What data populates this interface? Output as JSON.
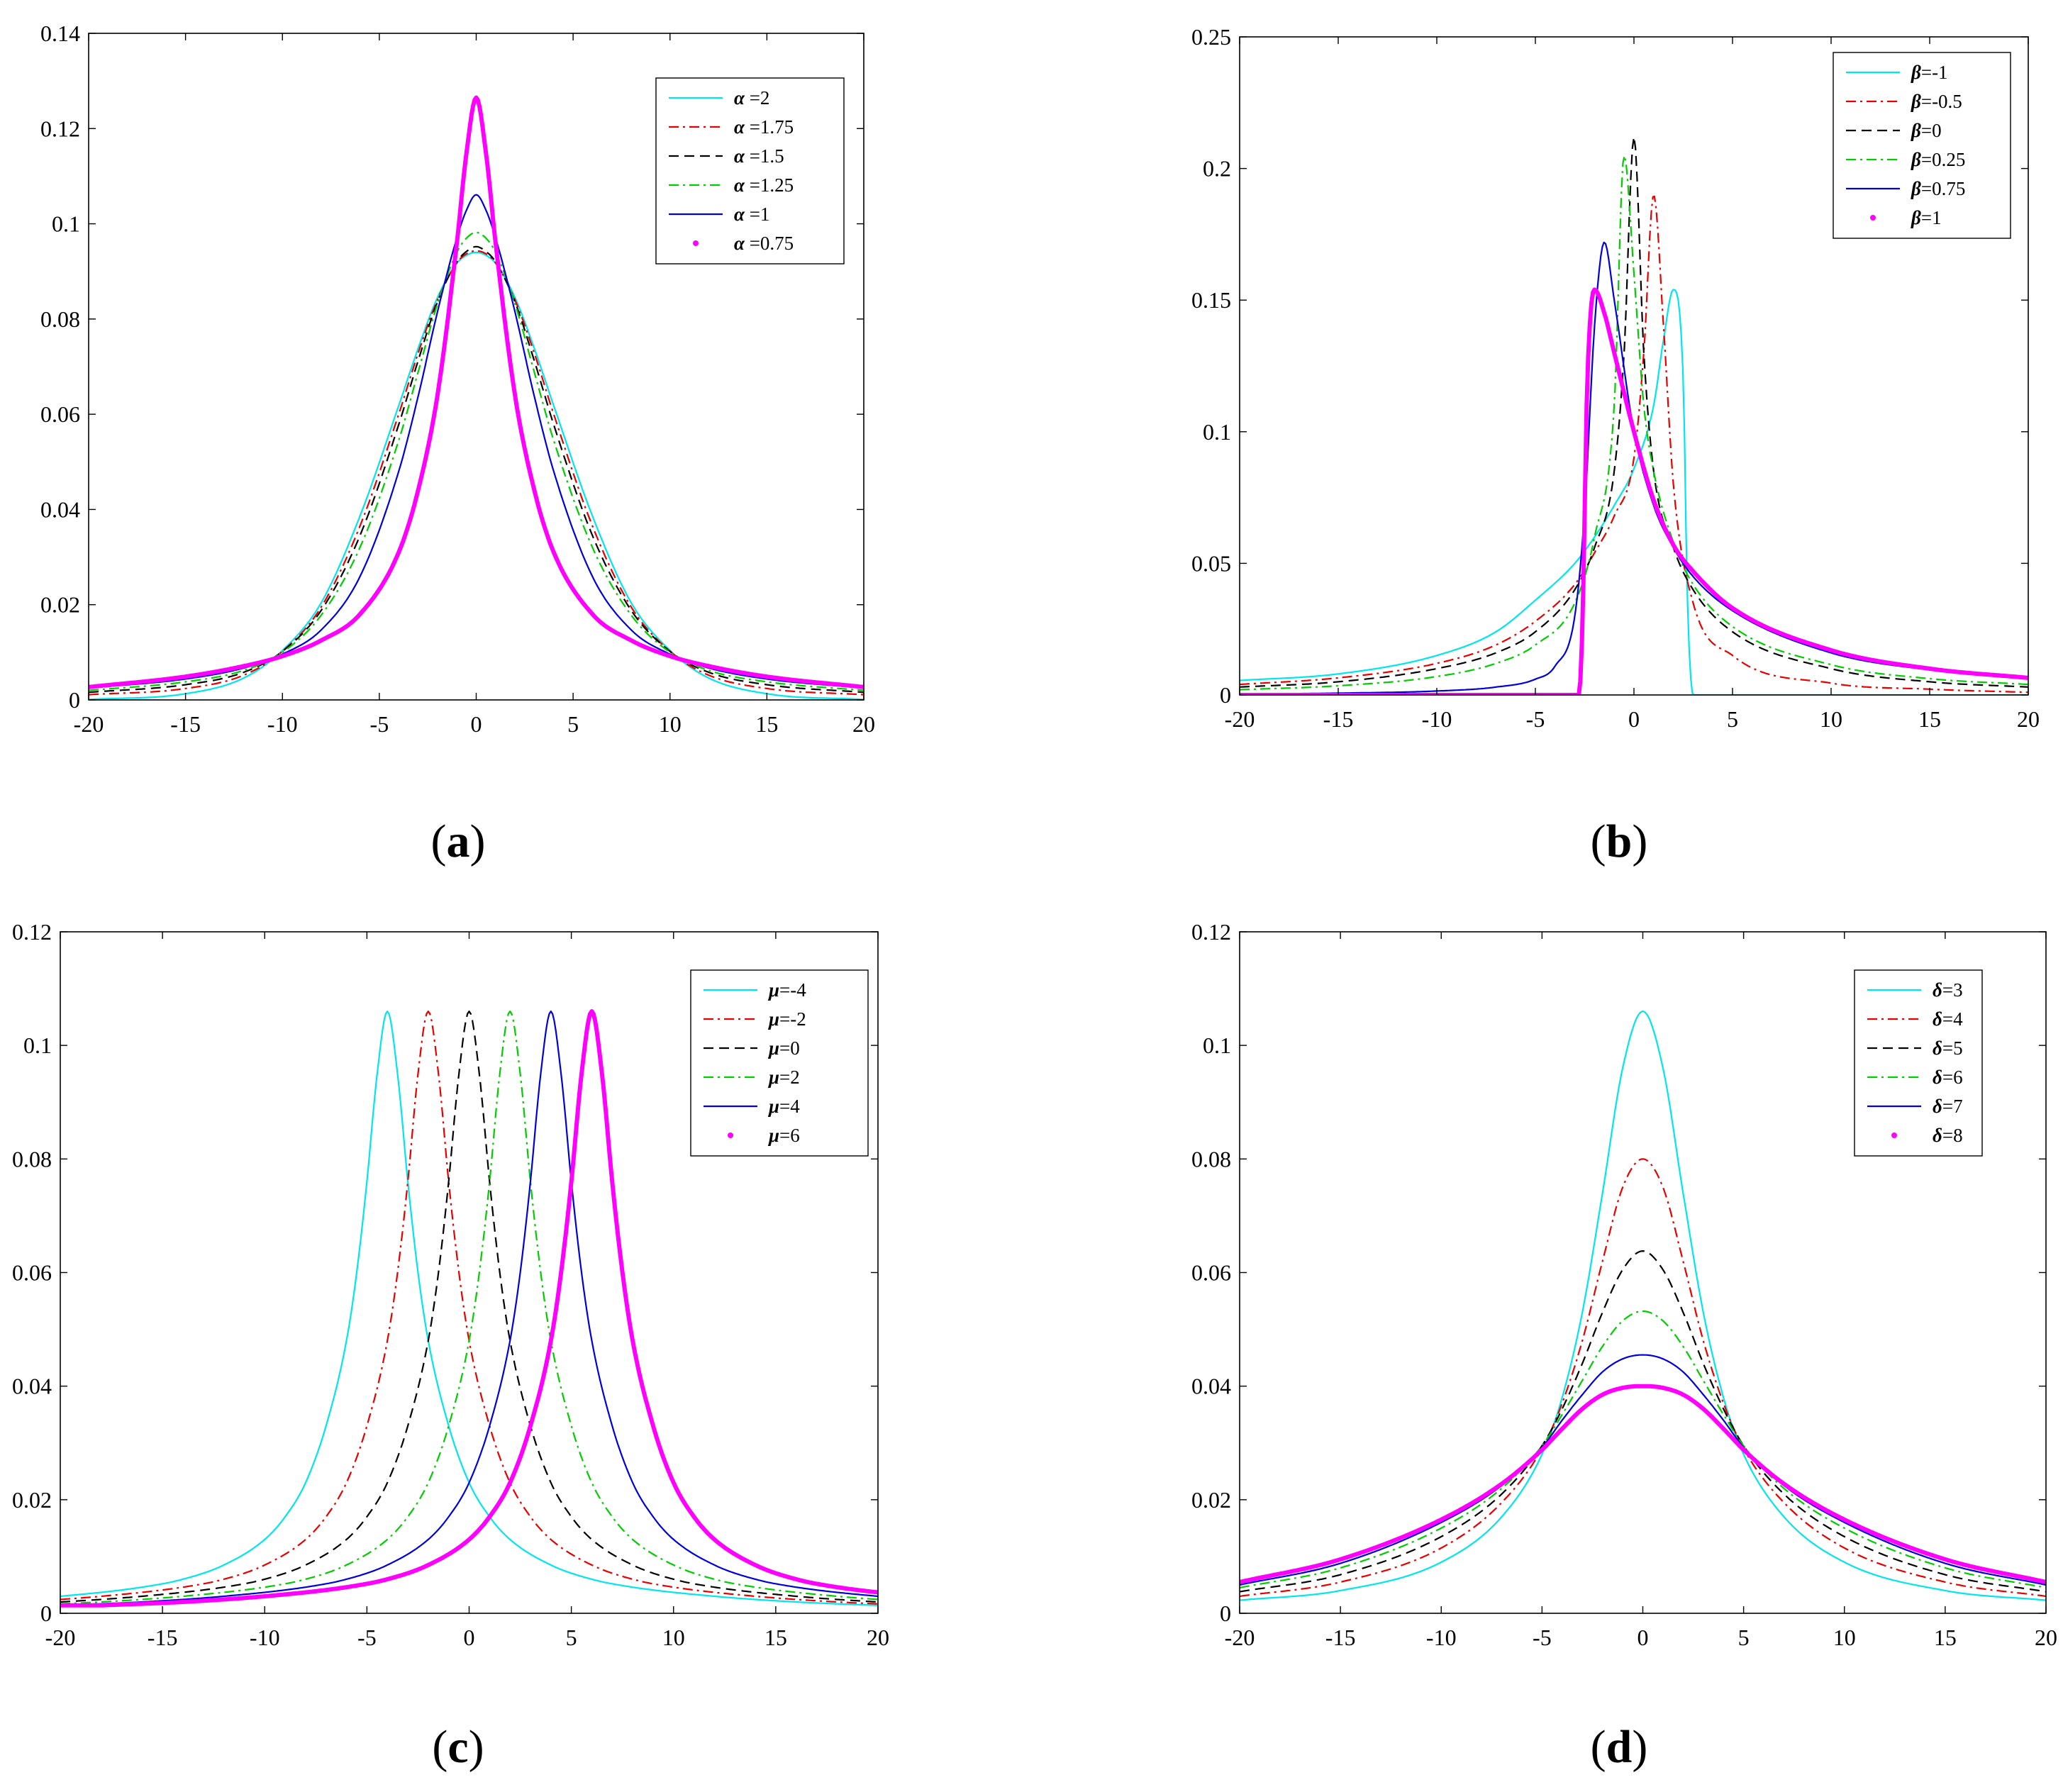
{
  "figure": {
    "styles": {
      "cyan": {
        "color": "#00e5ee",
        "dash": "",
        "width": 2.2,
        "dot": false
      },
      "red": {
        "color": "#e60000",
        "dash": "14 6 3 6",
        "width": 2.2,
        "dot": false
      },
      "black": {
        "color": "#000000",
        "dash": "14 8",
        "width": 2.2,
        "dot": false
      },
      "green": {
        "color": "#00cc00",
        "dash": "14 6 3 6",
        "width": 2.2,
        "dot": false
      },
      "blue": {
        "color": "#0000dd",
        "dash": "",
        "width": 2.2,
        "dot": false
      },
      "magenta": {
        "color": "#ff00ff",
        "dash": "",
        "width": 6,
        "dot": true
      }
    }
  },
  "chart_data": [
    {
      "type": "line",
      "caption": "a",
      "title": "",
      "xlabel": "",
      "ylabel": "",
      "xlim": [
        -20,
        20
      ],
      "ylim": [
        0,
        0.14
      ],
      "xticks": [
        -20,
        -15,
        -10,
        -5,
        0,
        5,
        10,
        15,
        20
      ],
      "xtick_labels": [
        "-20",
        "-15",
        "-10",
        "-5",
        "0",
        "5",
        "10",
        "15",
        "20"
      ],
      "yticks": [
        0,
        0.02,
        0.04,
        0.06,
        0.08,
        0.1,
        0.12,
        0.14
      ],
      "ytick_labels": [
        "0",
        "0.02",
        "0.04",
        "0.06",
        "0.08",
        "0.1",
        "0.12",
        "0.14"
      ],
      "legend": {
        "placement": "top-right",
        "symbol": "α",
        "separator": " =",
        "labels": [
          "2",
          "1.75",
          "1.5",
          "1.25",
          "1",
          "0.75"
        ]
      },
      "x": [
        -20,
        -15,
        -12,
        -10,
        -8,
        -6,
        -4,
        -3,
        -2,
        -1,
        -0.5,
        0,
        0.5,
        1,
        2,
        3,
        4,
        6,
        8,
        10,
        12,
        15,
        20
      ],
      "series": [
        {
          "name": "α =2",
          "style": "cyan",
          "values": [
            0.0001,
            0.0013,
            0.0046,
            0.0104,
            0.0204,
            0.0386,
            0.0618,
            0.0738,
            0.0845,
            0.0917,
            0.0934,
            0.094,
            0.0934,
            0.0917,
            0.0845,
            0.0738,
            0.0618,
            0.0386,
            0.0204,
            0.0104,
            0.0046,
            0.0013,
            0.0001
          ]
        },
        {
          "name": "α =1.75",
          "style": "red",
          "values": [
            0.0011,
            0.0024,
            0.0052,
            0.0102,
            0.0195,
            0.0365,
            0.06,
            0.0728,
            0.084,
            0.0918,
            0.0937,
            0.0943,
            0.0937,
            0.0918,
            0.084,
            0.0728,
            0.06,
            0.0365,
            0.0195,
            0.0102,
            0.0052,
            0.0024,
            0.0011
          ]
        },
        {
          "name": "α =1.5",
          "style": "black",
          "values": [
            0.0016,
            0.0032,
            0.0058,
            0.0102,
            0.0188,
            0.0345,
            0.0578,
            0.0712,
            0.0836,
            0.092,
            0.0942,
            0.0952,
            0.0942,
            0.092,
            0.0836,
            0.0712,
            0.0578,
            0.0345,
            0.0188,
            0.0102,
            0.0058,
            0.0032,
            0.0016
          ]
        },
        {
          "name": "α =1.25",
          "style": "green",
          "values": [
            0.002,
            0.0038,
            0.0062,
            0.01,
            0.0178,
            0.032,
            0.0545,
            0.0688,
            0.0832,
            0.094,
            0.097,
            0.0982,
            0.097,
            0.094,
            0.0832,
            0.0688,
            0.0545,
            0.032,
            0.0178,
            0.01,
            0.0062,
            0.0038,
            0.002
          ]
        },
        {
          "name": "α =1",
          "style": "blue",
          "values": [
            0.0025,
            0.0044,
            0.0067,
            0.0096,
            0.0147,
            0.0259,
            0.048,
            0.0637,
            0.0815,
            0.097,
            0.1029,
            0.1061,
            0.1029,
            0.097,
            0.0815,
            0.0637,
            0.048,
            0.0259,
            0.0147,
            0.0096,
            0.0067,
            0.0044,
            0.0025
          ]
        },
        {
          "name": "α =0.75",
          "style": "magenta",
          "values": [
            0.0027,
            0.0049,
            0.0071,
            0.0092,
            0.0125,
            0.018,
            0.031,
            0.044,
            0.064,
            0.096,
            0.115,
            0.1265,
            0.115,
            0.096,
            0.064,
            0.044,
            0.031,
            0.018,
            0.0125,
            0.0092,
            0.0071,
            0.0049,
            0.0027
          ]
        }
      ]
    },
    {
      "type": "line",
      "caption": "b",
      "title": "",
      "xlabel": "",
      "ylabel": "",
      "xlim": [
        -20,
        20
      ],
      "ylim": [
        0,
        0.25
      ],
      "xticks": [
        -20,
        -15,
        -10,
        -5,
        0,
        5,
        10,
        15,
        20
      ],
      "xtick_labels": [
        "-20",
        "-15",
        "-10",
        "-5",
        "0",
        "5",
        "10",
        "15",
        "20"
      ],
      "yticks": [
        0,
        0.05,
        0.1,
        0.15,
        0.2,
        0.25
      ],
      "ytick_labels": [
        "0",
        "0.05",
        "0.1",
        "0.15",
        "0.2",
        "0.25"
      ],
      "legend": {
        "placement": "top-right",
        "symbol": "β",
        "separator": "=",
        "labels": [
          "-1",
          "-0.5",
          "0",
          "0.25",
          "0.75",
          "1"
        ]
      },
      "series": [
        {
          "name": "β=-1",
          "style": "cyan",
          "x": [
            -20,
            -15,
            -10,
            -7,
            -5,
            -3,
            -2,
            -1,
            0,
            1,
            1.5,
            2,
            2.5,
            2.7,
            3,
            5,
            10,
            15,
            20
          ],
          "values": [
            0.0055,
            0.008,
            0.015,
            0.024,
            0.036,
            0.05,
            0.06,
            0.072,
            0.086,
            0.11,
            0.135,
            0.154,
            0.12,
            0.04,
            0.0,
            0.0,
            0.0,
            0.0,
            0.0
          ]
        },
        {
          "name": "β=-0.5",
          "style": "red",
          "x": [
            -20,
            -15,
            -10,
            -7,
            -5,
            -3,
            -2,
            -1,
            0,
            0.5,
            1,
            1.5,
            2,
            3,
            5,
            10,
            15,
            20
          ],
          "values": [
            0.004,
            0.0065,
            0.012,
            0.019,
            0.028,
            0.042,
            0.054,
            0.068,
            0.09,
            0.13,
            0.19,
            0.14,
            0.08,
            0.035,
            0.015,
            0.0045,
            0.0022,
            0.001
          ]
        },
        {
          "name": "β=0",
          "style": "black",
          "x": [
            -20,
            -15,
            -10,
            -7,
            -5,
            -3,
            -2,
            -1,
            -0.5,
            0,
            0.5,
            1,
            2,
            3,
            5,
            10,
            15,
            20
          ],
          "values": [
            0.003,
            0.005,
            0.01,
            0.016,
            0.024,
            0.04,
            0.056,
            0.085,
            0.13,
            0.212,
            0.13,
            0.085,
            0.056,
            0.04,
            0.024,
            0.01,
            0.005,
            0.003
          ]
        },
        {
          "name": "β=0.25",
          "style": "green",
          "x": [
            -20,
            -15,
            -10,
            -7,
            -5,
            -3,
            -2,
            -1,
            -0.5,
            0,
            0.5,
            1,
            2,
            3,
            5,
            10,
            15,
            20
          ],
          "values": [
            0.002,
            0.0035,
            0.007,
            0.012,
            0.019,
            0.035,
            0.06,
            0.11,
            0.205,
            0.16,
            0.11,
            0.085,
            0.058,
            0.042,
            0.026,
            0.0115,
            0.0062,
            0.004
          ]
        },
        {
          "name": "β=0.75",
          "style": "blue",
          "x": [
            -20,
            -15,
            -10,
            -7,
            -5,
            -4,
            -3,
            -2.5,
            -2,
            -1.5,
            -1,
            0,
            1,
            2,
            3,
            5,
            10,
            15,
            20
          ],
          "values": [
            0.0003,
            0.0007,
            0.0015,
            0.003,
            0.006,
            0.011,
            0.03,
            0.07,
            0.14,
            0.172,
            0.15,
            0.1,
            0.072,
            0.056,
            0.045,
            0.032,
            0.016,
            0.0095,
            0.006
          ]
        },
        {
          "name": "β=1",
          "style": "magenta",
          "x": [
            -20,
            -10,
            -5,
            -3,
            -2.8,
            -2.6,
            -2.4,
            -2.2,
            -2,
            -1.5,
            -1,
            0,
            1,
            2,
            3,
            5,
            10,
            15,
            20
          ],
          "values": [
            0.0,
            0.0,
            0.0,
            0.0,
            0.0,
            0.03,
            0.11,
            0.145,
            0.154,
            0.145,
            0.13,
            0.1,
            0.074,
            0.057,
            0.047,
            0.033,
            0.017,
            0.01,
            0.0065
          ]
        }
      ]
    },
    {
      "type": "line",
      "caption": "c",
      "title": "",
      "xlabel": "",
      "ylabel": "",
      "xlim": [
        -20,
        20
      ],
      "ylim": [
        0,
        0.12
      ],
      "xticks": [
        -20,
        -15,
        -10,
        -5,
        0,
        5,
        10,
        15,
        20
      ],
      "xtick_labels": [
        "-20",
        "-15",
        "-10",
        "-5",
        "0",
        "5",
        "10",
        "15",
        "20"
      ],
      "yticks": [
        0,
        0.02,
        0.04,
        0.06,
        0.08,
        0.1,
        0.12
      ],
      "ytick_labels": [
        "0",
        "0.02",
        "0.04",
        "0.06",
        "0.08",
        "0.1",
        "0.12"
      ],
      "legend": {
        "placement": "top-right",
        "symbol": "μ",
        "separator": "=",
        "labels": [
          "-4",
          "-2",
          "0",
          "2",
          "4",
          "6"
        ]
      },
      "base_offsets": [
        -24,
        -20,
        -16,
        -12,
        -10,
        -8,
        -6,
        -5,
        -4,
        -3,
        -2,
        -1.5,
        -1,
        -0.5,
        0,
        0.5,
        1,
        1.5,
        2,
        3,
        4,
        5,
        6,
        8,
        10,
        12,
        16,
        20,
        24,
        26
      ],
      "base_values": [
        0.0014,
        0.002,
        0.003,
        0.0046,
        0.006,
        0.0085,
        0.013,
        0.017,
        0.023,
        0.033,
        0.048,
        0.06,
        0.076,
        0.095,
        0.106,
        0.095,
        0.076,
        0.06,
        0.048,
        0.033,
        0.023,
        0.017,
        0.013,
        0.0085,
        0.006,
        0.0046,
        0.003,
        0.002,
        0.0014,
        0.0012
      ],
      "series": [
        {
          "name": "μ=-4",
          "style": "cyan",
          "shift": -4
        },
        {
          "name": "μ=-2",
          "style": "red",
          "shift": -2
        },
        {
          "name": "μ=0",
          "style": "black",
          "shift": 0
        },
        {
          "name": "μ=2",
          "style": "green",
          "shift": 2
        },
        {
          "name": "μ=4",
          "style": "blue",
          "shift": 4
        },
        {
          "name": "μ=6",
          "style": "magenta",
          "shift": 6
        }
      ]
    },
    {
      "type": "line",
      "caption": "d",
      "title": "",
      "xlabel": "",
      "ylabel": "",
      "xlim": [
        -20,
        20
      ],
      "ylim": [
        0,
        0.12
      ],
      "xticks": [
        -20,
        -15,
        -10,
        -5,
        0,
        5,
        10,
        15,
        20
      ],
      "xtick_labels": [
        "-20",
        "-15",
        "-10",
        "-5",
        "0",
        "5",
        "10",
        "15",
        "20"
      ],
      "yticks": [
        0,
        0.02,
        0.04,
        0.06,
        0.08,
        0.1,
        0.12
      ],
      "ytick_labels": [
        "0",
        "0.02",
        "0.04",
        "0.06",
        "0.08",
        "0.1",
        "0.12"
      ],
      "legend": {
        "placement": "top-right",
        "symbol": "δ",
        "separator": "=",
        "labels": [
          "3",
          "4",
          "5",
          "6",
          "7",
          "8"
        ]
      },
      "x": [
        -20,
        -15,
        -10,
        -7,
        -5,
        -4,
        -3,
        -2,
        -1,
        0,
        1,
        2,
        3,
        4,
        5,
        7,
        10,
        15,
        20
      ],
      "series": [
        {
          "name": "δ=3",
          "style": "cyan",
          "values": [
            0.0023,
            0.004,
            0.009,
            0.017,
            0.028,
            0.038,
            0.053,
            0.074,
            0.096,
            0.106,
            0.096,
            0.074,
            0.053,
            0.038,
            0.028,
            0.017,
            0.009,
            0.004,
            0.0023
          ]
        },
        {
          "name": "δ=4",
          "style": "red",
          "values": [
            0.003,
            0.0055,
            0.0115,
            0.0195,
            0.029,
            0.037,
            0.048,
            0.062,
            0.075,
            0.08,
            0.075,
            0.062,
            0.048,
            0.037,
            0.029,
            0.0195,
            0.0115,
            0.0055,
            0.003
          ]
        },
        {
          "name": "δ=5",
          "style": "black",
          "values": [
            0.0038,
            0.0068,
            0.0135,
            0.021,
            0.0295,
            0.036,
            0.044,
            0.053,
            0.0605,
            0.0638,
            0.0605,
            0.053,
            0.044,
            0.036,
            0.0295,
            0.021,
            0.0135,
            0.0068,
            0.0038
          ]
        },
        {
          "name": "δ=6",
          "style": "green",
          "values": [
            0.0045,
            0.008,
            0.015,
            0.022,
            0.0295,
            0.035,
            0.041,
            0.047,
            0.0515,
            0.0532,
            0.0515,
            0.047,
            0.041,
            0.035,
            0.0295,
            0.022,
            0.015,
            0.008,
            0.0045
          ]
        },
        {
          "name": "δ=7",
          "style": "blue",
          "values": [
            0.005,
            0.0088,
            0.016,
            0.0225,
            0.0292,
            0.034,
            0.0385,
            0.0425,
            0.0448,
            0.0455,
            0.0448,
            0.0425,
            0.0385,
            0.034,
            0.0292,
            0.0225,
            0.016,
            0.0088,
            0.005
          ]
        },
        {
          "name": "δ=8",
          "style": "magenta",
          "values": [
            0.0055,
            0.0095,
            0.0165,
            0.0228,
            0.0288,
            0.0325,
            0.036,
            0.0385,
            0.0397,
            0.04,
            0.0397,
            0.0385,
            0.036,
            0.0325,
            0.0288,
            0.0228,
            0.0165,
            0.0095,
            0.0055
          ]
        }
      ]
    }
  ]
}
